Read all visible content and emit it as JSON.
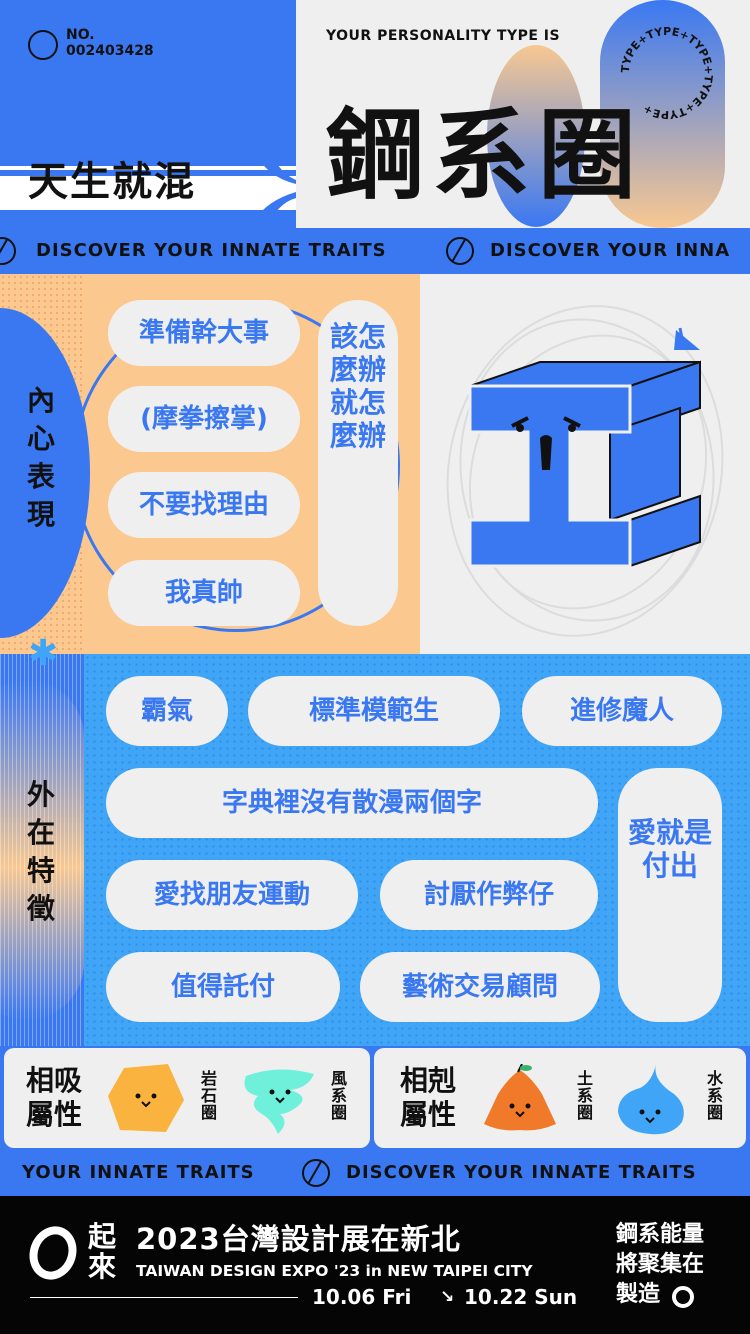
{
  "header": {
    "number_label": "NO.",
    "number_value": "002403428",
    "intro": "YOUR PERSONALITY TYPE IS",
    "type_name": "鋼系圈",
    "slogan": "天生就混",
    "badge_ring_text": "TYPE+TYPE+TYPE+TYPE+TYPE+"
  },
  "ticker_top": {
    "text": "DISCOVER YOUR INNATE TRAITS",
    "text_cut": "DISCOVER YOUR INNA"
  },
  "inner": {
    "label": "內心表現",
    "pills": [
      "準備幹大事",
      "(摩拳擦掌)",
      "不要找理由",
      "我真帥"
    ],
    "vertical_pill": "該怎麼辦就怎麼辦"
  },
  "outer": {
    "label": "外在特徵",
    "pills": [
      "霸氣",
      "標準模範生",
      "進修魔人",
      "字典裡沒有散漫兩個字",
      "愛找朋友運動",
      "討厭作弊仔",
      "值得託付",
      "藝術交易顧問"
    ],
    "vertical_pill": "愛就是付出"
  },
  "attributes": {
    "compatible_label": "相吸\n屬性",
    "compatible": [
      "岩石圈",
      "風系圈"
    ],
    "conflict_label": "相剋\n屬性",
    "conflict": [
      "土系圈",
      "水系圈"
    ]
  },
  "ticker_bottom": {
    "text_cut": "YOUR INNATE TRAITS",
    "text": "DISCOVER YOUR INNATE TRAITS"
  },
  "footer": {
    "logo_text": "起來",
    "title": "2023台灣設計展在新北",
    "subtitle": "TAIWAN DESIGN EXPO '23 in NEW TAIPEI CITY",
    "date_start": "10.06 Fri",
    "date_arrow": "↘",
    "date_end": "10.22 Sun",
    "right_text": "鋼系能量\n將聚集在\n製造"
  },
  "colors": {
    "blue": "#3a78f2",
    "sky": "#41a5f7",
    "peach": "#fbc98f",
    "black": "#050505",
    "light": "#efefef"
  }
}
